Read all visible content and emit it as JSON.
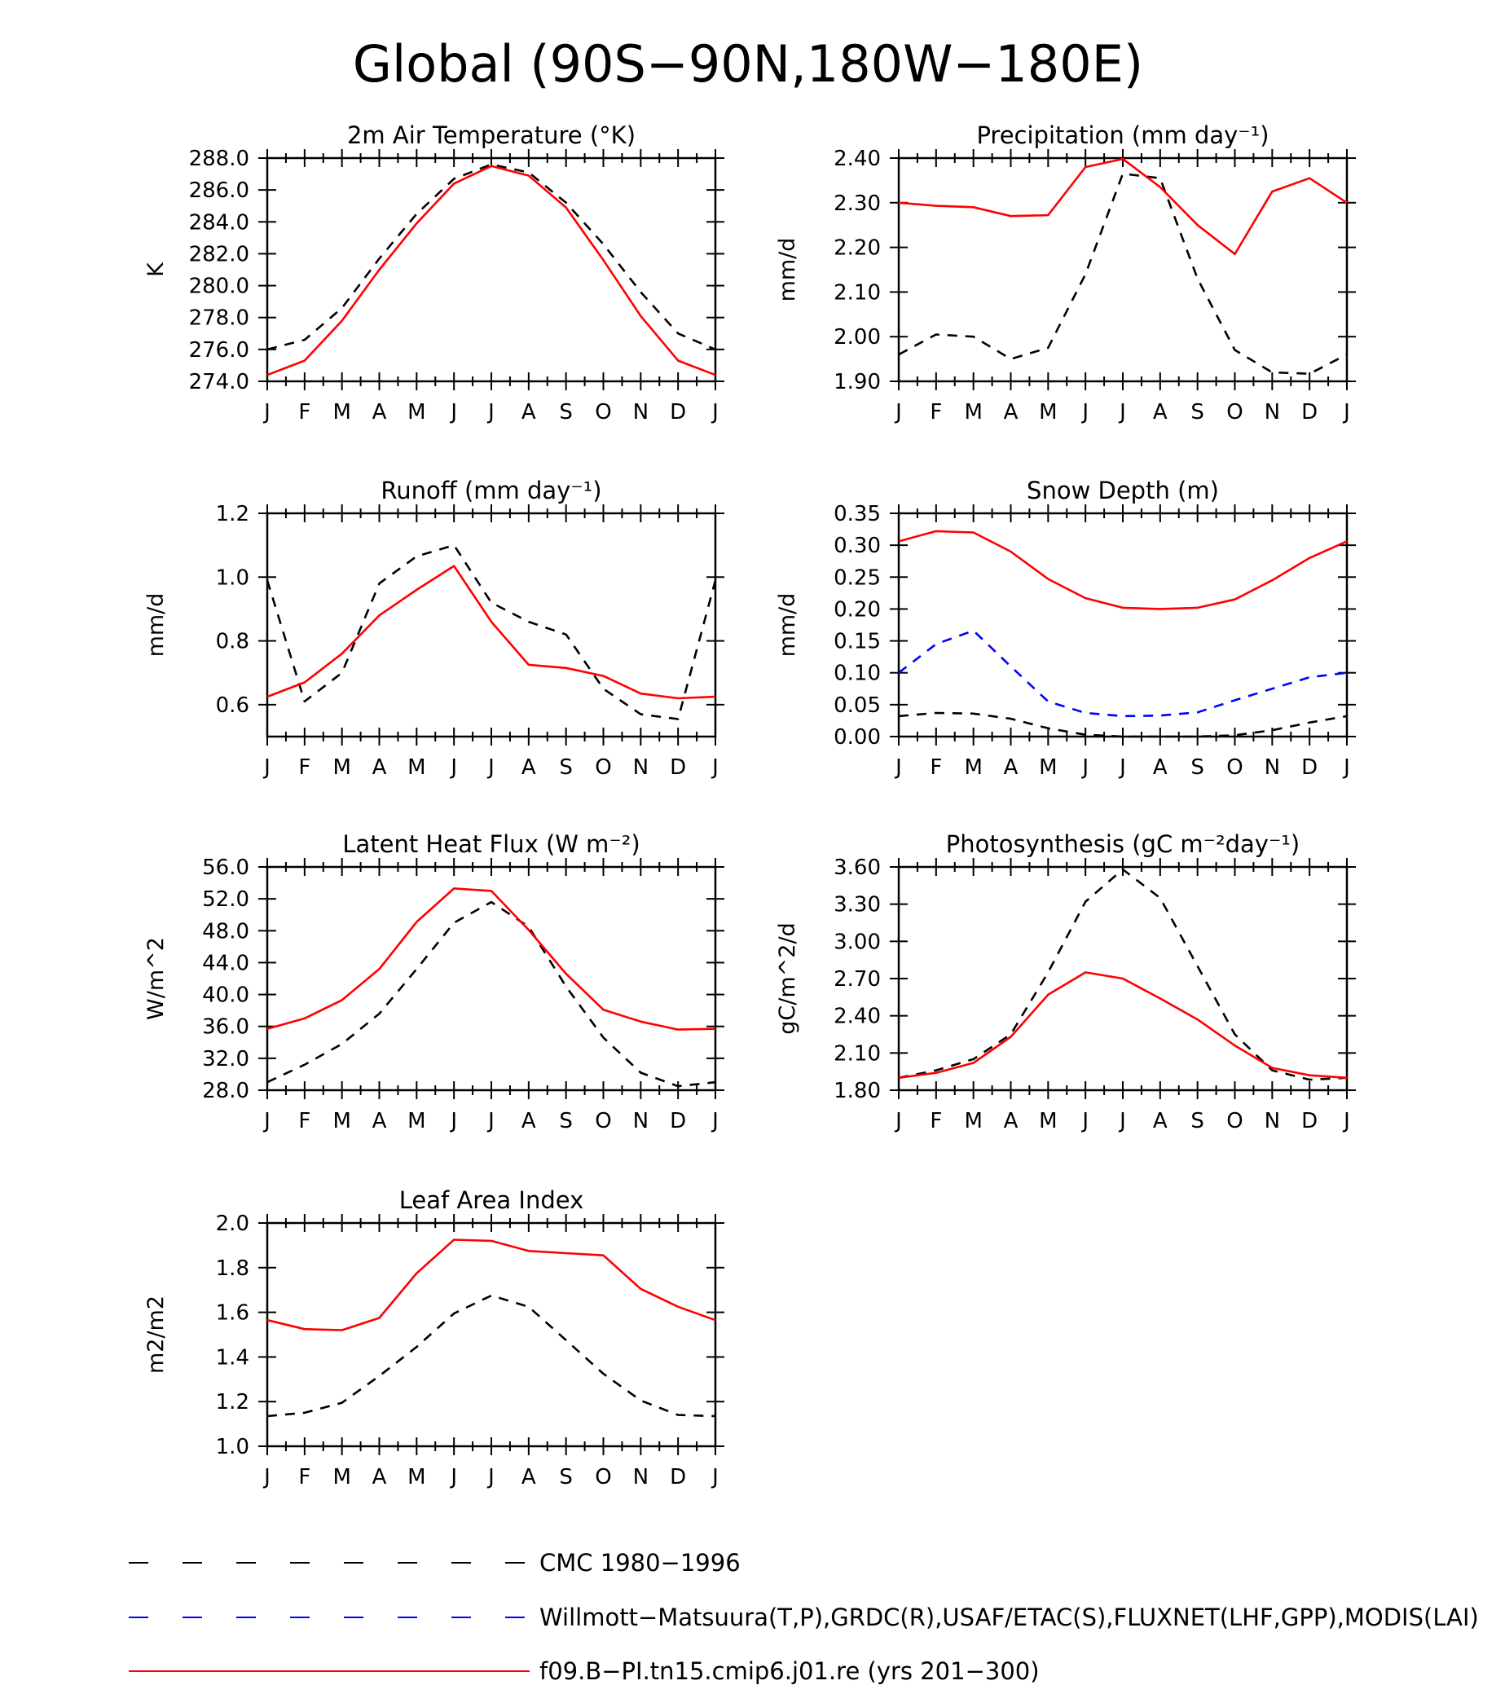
{
  "figure": {
    "title": "Global (90S−90N,180W−180E)"
  },
  "legend": [
    {
      "label": "CMC 1980−1996",
      "color": "#000000",
      "style": "dashed"
    },
    {
      "label": "Willmott−Matsuura(T,P),GRDC(R),USAF/ETAC(S),FLUXNET(LHF,GPP),MODIS(LAI)",
      "color": "#0000ff",
      "style": "dashed"
    },
    {
      "label": "f09.B−PI.tn15.cmip6.j01.re (yrs 201−300)",
      "color": "#ff0000",
      "style": "solid"
    }
  ],
  "chart_data": [
    {
      "type": "line",
      "title": "2m Air Temperature (°K)",
      "ylabel": "K",
      "categories": [
        "J",
        "F",
        "M",
        "A",
        "M",
        "J",
        "J",
        "A",
        "S",
        "O",
        "N",
        "D",
        "J"
      ],
      "ylim": [
        274.0,
        288.0
      ],
      "yticks": [
        "274.0",
        "276.0",
        "278.0",
        "280.0",
        "282.0",
        "284.0",
        "286.0",
        "288.0"
      ],
      "series": [
        {
          "color": "#000000",
          "style": "dashed",
          "values": [
            276.0,
            276.6,
            278.6,
            281.7,
            284.5,
            286.7,
            287.6,
            287.1,
            285.2,
            282.6,
            279.6,
            277.0,
            276.0
          ]
        },
        {
          "color": "#ff0000",
          "style": "solid",
          "values": [
            274.4,
            275.3,
            277.8,
            281.0,
            283.9,
            286.4,
            287.5,
            286.9,
            284.9,
            281.6,
            278.1,
            275.3,
            274.4
          ]
        }
      ]
    },
    {
      "type": "line",
      "title": "Precipitation (mm day⁻¹)",
      "ylabel": "mm/d",
      "categories": [
        "J",
        "F",
        "M",
        "A",
        "M",
        "J",
        "J",
        "A",
        "S",
        "O",
        "N",
        "D",
        "J"
      ],
      "ylim": [
        1.9,
        2.4
      ],
      "yticks": [
        "1.90",
        "2.00",
        "2.10",
        "2.20",
        "2.30",
        "2.40"
      ],
      "series": [
        {
          "color": "#000000",
          "style": "dashed",
          "values": [
            1.96,
            2.005,
            2.0,
            1.95,
            1.975,
            2.14,
            2.365,
            2.355,
            2.13,
            1.97,
            1.92,
            1.917,
            1.96
          ]
        },
        {
          "color": "#ff0000",
          "style": "solid",
          "values": [
            2.3,
            2.293,
            2.29,
            2.27,
            2.272,
            2.38,
            2.398,
            2.335,
            2.25,
            2.185,
            2.325,
            2.355,
            2.3
          ]
        }
      ]
    },
    {
      "type": "line",
      "title": "Runoff (mm day⁻¹)",
      "ylabel": "mm/d",
      "categories": [
        "J",
        "F",
        "M",
        "A",
        "M",
        "J",
        "J",
        "A",
        "S",
        "O",
        "N",
        "D",
        "J"
      ],
      "ylim": [
        0.5,
        1.2
      ],
      "yticks": [
        "0.6",
        "0.8",
        "1.0",
        "1.2"
      ],
      "series": [
        {
          "color": "#000000",
          "style": "dashed",
          "values": [
            0.99,
            0.61,
            0.7,
            0.98,
            1.065,
            1.1,
            0.92,
            0.86,
            0.82,
            0.65,
            0.57,
            0.555,
            0.99
          ]
        },
        {
          "color": "#ff0000",
          "style": "solid",
          "values": [
            0.625,
            0.67,
            0.76,
            0.88,
            0.96,
            1.035,
            0.86,
            0.725,
            0.715,
            0.69,
            0.635,
            0.62,
            0.625
          ]
        }
      ]
    },
    {
      "type": "line",
      "title": "Snow Depth (m)",
      "ylabel": "mm/d",
      "categories": [
        "J",
        "F",
        "M",
        "A",
        "M",
        "J",
        "J",
        "A",
        "S",
        "O",
        "N",
        "D",
        "J"
      ],
      "ylim": [
        0.0,
        0.35
      ],
      "yticks": [
        "0.00",
        "0.05",
        "0.10",
        "0.15",
        "0.20",
        "0.25",
        "0.30",
        "0.35"
      ],
      "series": [
        {
          "color": "#0000ff",
          "style": "dashed",
          "values": [
            0.1,
            0.145,
            0.166,
            0.11,
            0.055,
            0.037,
            0.032,
            0.033,
            0.038,
            0.057,
            0.075,
            0.093,
            0.1
          ]
        },
        {
          "color": "#000000",
          "style": "dashed",
          "values": [
            0.032,
            0.037,
            0.036,
            0.028,
            0.013,
            0.003,
            0.0,
            0.0,
            0.0,
            0.002,
            0.01,
            0.022,
            0.032
          ]
        },
        {
          "color": "#ff0000",
          "style": "solid",
          "values": [
            0.306,
            0.322,
            0.32,
            0.29,
            0.247,
            0.217,
            0.202,
            0.2,
            0.202,
            0.215,
            0.245,
            0.28,
            0.306
          ]
        }
      ]
    },
    {
      "type": "line",
      "title": "Latent Heat Flux (W m⁻²)",
      "ylabel": "W/m^2",
      "categories": [
        "J",
        "F",
        "M",
        "A",
        "M",
        "J",
        "J",
        "A",
        "S",
        "O",
        "N",
        "D",
        "J"
      ],
      "ylim": [
        28.0,
        56.0
      ],
      "yticks": [
        "28.0",
        "32.0",
        "36.0",
        "40.0",
        "44.0",
        "48.0",
        "52.0",
        "56.0"
      ],
      "series": [
        {
          "color": "#000000",
          "style": "dashed",
          "values": [
            29.0,
            31.2,
            33.8,
            37.6,
            43.2,
            49.0,
            51.6,
            48.5,
            41.0,
            34.6,
            30.2,
            28.5,
            29.0
          ]
        },
        {
          "color": "#ff0000",
          "style": "solid",
          "values": [
            35.7,
            37.0,
            39.3,
            43.2,
            49.1,
            53.3,
            53.0,
            48.1,
            42.6,
            38.1,
            36.6,
            35.6,
            35.7
          ]
        }
      ]
    },
    {
      "type": "line",
      "title": "Photosynthesis (gC m⁻²day⁻¹)",
      "ylabel": "gC/m^2/d",
      "categories": [
        "J",
        "F",
        "M",
        "A",
        "M",
        "J",
        "J",
        "A",
        "S",
        "O",
        "N",
        "D",
        "J"
      ],
      "ylim": [
        1.8,
        3.6
      ],
      "yticks": [
        "1.80",
        "2.10",
        "2.40",
        "2.70",
        "3.00",
        "3.30",
        "3.60"
      ],
      "series": [
        {
          "color": "#000000",
          "style": "dashed",
          "values": [
            1.9,
            1.96,
            2.05,
            2.25,
            2.75,
            3.32,
            3.58,
            3.35,
            2.8,
            2.25,
            1.96,
            1.885,
            1.9
          ]
        },
        {
          "color": "#ff0000",
          "style": "solid",
          "values": [
            1.9,
            1.94,
            2.02,
            2.23,
            2.57,
            2.75,
            2.7,
            2.54,
            2.37,
            2.16,
            1.98,
            1.92,
            1.9
          ]
        }
      ]
    },
    {
      "type": "line",
      "title": "Leaf Area Index",
      "ylabel": "m2/m2",
      "categories": [
        "J",
        "F",
        "M",
        "A",
        "M",
        "J",
        "J",
        "A",
        "S",
        "O",
        "N",
        "D",
        "J"
      ],
      "ylim": [
        1.0,
        2.0
      ],
      "yticks": [
        "1.0",
        "1.2",
        "1.4",
        "1.6",
        "1.8",
        "2.0"
      ],
      "series": [
        {
          "color": "#000000",
          "style": "dashed",
          "values": [
            1.135,
            1.15,
            1.195,
            1.315,
            1.445,
            1.595,
            1.675,
            1.625,
            1.475,
            1.325,
            1.205,
            1.14,
            1.135
          ]
        },
        {
          "color": "#ff0000",
          "style": "solid",
          "values": [
            1.565,
            1.525,
            1.52,
            1.575,
            1.775,
            1.925,
            1.92,
            1.875,
            1.865,
            1.855,
            1.705,
            1.625,
            1.565
          ]
        }
      ]
    }
  ]
}
